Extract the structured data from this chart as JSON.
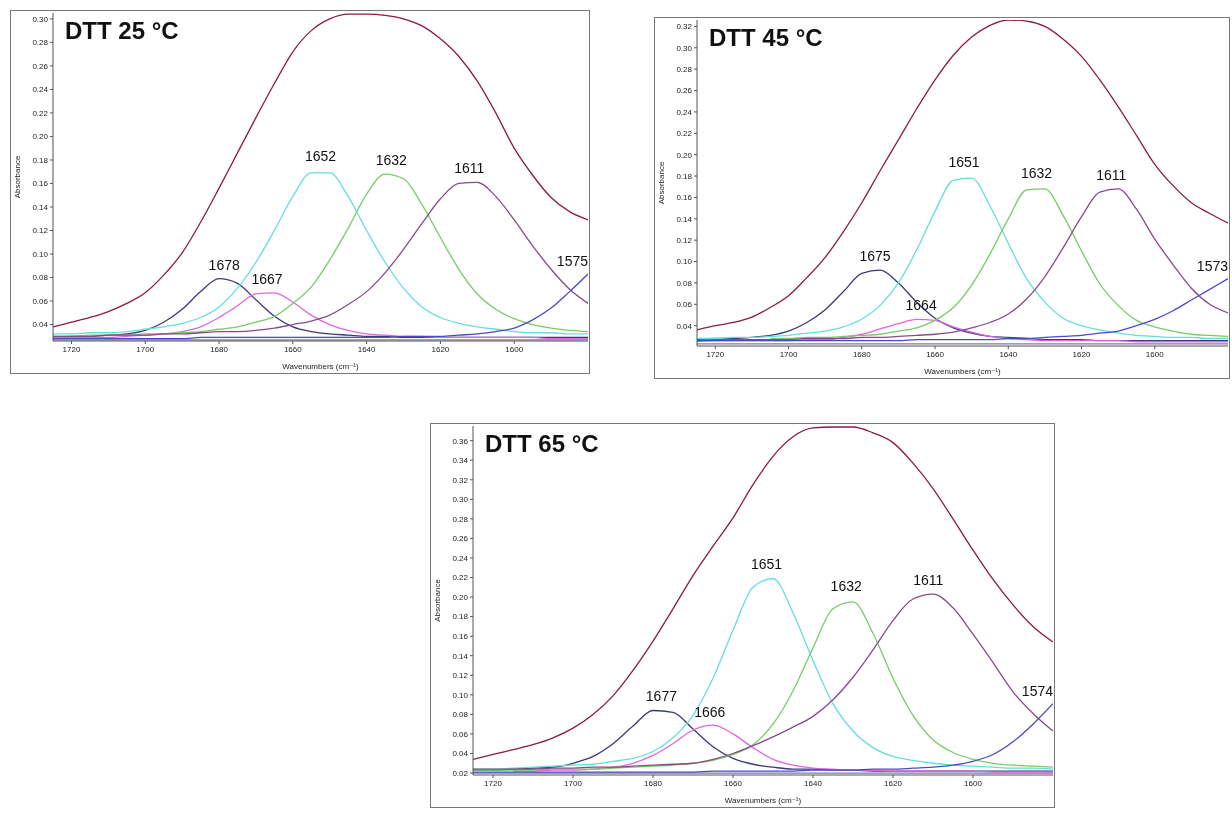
{
  "chart_data": [
    {
      "type": "line",
      "title": "DTT 25 °C",
      "xlabel": "Wavenumbers (cm⁻¹)",
      "ylabel": "Absorbance",
      "xlim": [
        1725,
        1580
      ],
      "xticks": [
        1720,
        1700,
        1680,
        1660,
        1640,
        1620,
        1600
      ],
      "ylim": [
        0.026,
        0.305
      ],
      "yticks": [
        {
          "value": 0.04,
          "label": "0.04"
        },
        {
          "value": 0.06,
          "label": "0.06"
        },
        {
          "value": 0.08,
          "label": "0.08"
        },
        {
          "value": 0.1,
          "label": "0.10"
        },
        {
          "value": 0.12,
          "label": "0.12"
        },
        {
          "value": 0.14,
          "label": "0.14"
        },
        {
          "value": 0.16,
          "label": "0.16"
        },
        {
          "value": 0.18,
          "label": "0.18"
        },
        {
          "value": 0.2,
          "label": "0.20"
        },
        {
          "value": 0.22,
          "label": "0.22"
        },
        {
          "value": 0.24,
          "label": "0.24"
        },
        {
          "value": 0.26,
          "label": "0.26"
        },
        {
          "value": 0.28,
          "label": "0.28"
        },
        {
          "value": 0.3,
          "label": "0.30"
        }
      ],
      "x": [
        1725,
        1720,
        1715,
        1710,
        1705,
        1700,
        1695,
        1690,
        1685,
        1680,
        1675,
        1670,
        1665,
        1660,
        1655,
        1650,
        1645,
        1640,
        1635,
        1630,
        1625,
        1620,
        1615,
        1610,
        1605,
        1600,
        1595,
        1590,
        1585,
        1580
      ],
      "series": [
        {
          "color": "#7a7ab0",
          "values": [
            0.027,
            0.027,
            0.027,
            0.027,
            0.027,
            0.027,
            0.027,
            0.027,
            0.027,
            0.027,
            0.027,
            0.027,
            0.027,
            0.027,
            0.027,
            0.027,
            0.027,
            0.027,
            0.027,
            0.027,
            0.027,
            0.027,
            0.027,
            0.027,
            0.027,
            0.027,
            0.027,
            0.027,
            0.027,
            0.027
          ]
        },
        {
          "color": "#3a3a7a",
          "values": [
            0.029,
            0.03,
            0.03,
            0.031,
            0.032,
            0.035,
            0.042,
            0.053,
            0.068,
            0.079,
            0.075,
            0.061,
            0.047,
            0.038,
            0.034,
            0.032,
            0.031,
            0.03,
            0.03,
            0.029,
            0.029,
            0.029,
            0.029,
            0.029,
            0.029,
            0.029,
            0.029,
            0.029,
            0.029,
            0.029
          ]
        },
        {
          "color": "#e066e0",
          "values": [
            0.029,
            0.029,
            0.029,
            0.029,
            0.03,
            0.031,
            0.032,
            0.034,
            0.038,
            0.046,
            0.056,
            0.066,
            0.067,
            0.059,
            0.048,
            0.04,
            0.035,
            0.032,
            0.031,
            0.03,
            0.03,
            0.029,
            0.029,
            0.029,
            0.029,
            0.029,
            0.029,
            0.028,
            0.028,
            0.028
          ]
        },
        {
          "color": "#66dddd",
          "values": [
            0.032,
            0.032,
            0.033,
            0.033,
            0.034,
            0.036,
            0.038,
            0.041,
            0.046,
            0.055,
            0.071,
            0.093,
            0.12,
            0.149,
            0.169,
            0.169,
            0.149,
            0.12,
            0.093,
            0.071,
            0.055,
            0.046,
            0.041,
            0.038,
            0.036,
            0.034,
            0.033,
            0.033,
            0.032,
            0.032
          ]
        },
        {
          "color": "#77cc66",
          "values": [
            0.03,
            0.03,
            0.031,
            0.031,
            0.031,
            0.032,
            0.032,
            0.033,
            0.034,
            0.036,
            0.038,
            0.042,
            0.047,
            0.058,
            0.072,
            0.095,
            0.122,
            0.151,
            0.168,
            0.164,
            0.142,
            0.114,
            0.087,
            0.066,
            0.053,
            0.045,
            0.04,
            0.037,
            0.035,
            0.034
          ]
        },
        {
          "color": "#8a4a8a",
          "values": [
            0.03,
            0.03,
            0.03,
            0.031,
            0.031,
            0.031,
            0.032,
            0.032,
            0.033,
            0.034,
            0.034,
            0.035,
            0.037,
            0.04,
            0.043,
            0.048,
            0.057,
            0.068,
            0.084,
            0.104,
            0.126,
            0.147,
            0.16,
            0.161,
            0.149,
            0.129,
            0.107,
            0.087,
            0.07,
            0.058
          ]
        },
        {
          "color": "#4a4ac8",
          "values": [
            0.028,
            0.028,
            0.028,
            0.028,
            0.028,
            0.028,
            0.028,
            0.028,
            0.029,
            0.029,
            0.029,
            0.029,
            0.029,
            0.029,
            0.029,
            0.029,
            0.029,
            0.029,
            0.029,
            0.03,
            0.03,
            0.03,
            0.031,
            0.032,
            0.034,
            0.037,
            0.044,
            0.054,
            0.068,
            0.083
          ]
        },
        {
          "color": "#8b1a4a",
          "values": [
            0.038,
            0.042,
            0.046,
            0.051,
            0.058,
            0.067,
            0.082,
            0.101,
            0.127,
            0.156,
            0.186,
            0.216,
            0.245,
            0.272,
            0.29,
            0.3,
            0.304,
            0.304,
            0.303,
            0.3,
            0.294,
            0.283,
            0.268,
            0.247,
            0.22,
            0.19,
            0.167,
            0.148,
            0.136,
            0.129
          ]
        }
      ],
      "annotations": [
        {
          "text": "1678",
          "x": 1678.6,
          "y": 0.08
        },
        {
          "text": "1667",
          "x": 1667,
          "y": 0.068
        },
        {
          "text": "1652",
          "x": 1652.5,
          "y": 0.172
        },
        {
          "text": "1632",
          "x": 1633.3,
          "y": 0.169
        },
        {
          "text": "1611",
          "x": 1612.2,
          "y": 0.162
        },
        {
          "text": "1575",
          "x": 1580,
          "y": 0.083
        }
      ]
    },
    {
      "type": "line",
      "title": "DTT 45 °C",
      "xlabel": "Wavenumbers (cm⁻¹)",
      "ylabel": "Absorbance",
      "xlim": [
        1725,
        1580
      ],
      "xticks": [
        1720,
        1700,
        1680,
        1660,
        1640,
        1620,
        1600
      ],
      "ylim": [
        0.021,
        0.326
      ],
      "yticks": [
        {
          "value": 0.04,
          "label": "0.04"
        },
        {
          "value": 0.06,
          "label": "0.06"
        },
        {
          "value": 0.08,
          "label": "0.08"
        },
        {
          "value": 0.1,
          "label": "0.10"
        },
        {
          "value": 0.12,
          "label": "0.12"
        },
        {
          "value": 0.14,
          "label": "0.14"
        },
        {
          "value": 0.16,
          "label": "0.16"
        },
        {
          "value": 0.18,
          "label": "0.18"
        },
        {
          "value": 0.2,
          "label": "0.20"
        },
        {
          "value": 0.22,
          "label": "0.22"
        },
        {
          "value": 0.24,
          "label": "0.24"
        },
        {
          "value": 0.26,
          "label": "0.26"
        },
        {
          "value": 0.28,
          "label": "0.28"
        },
        {
          "value": 0.3,
          "label": "0.30"
        },
        {
          "value": 0.32,
          "label": "0.32"
        }
      ],
      "x": [
        1725,
        1720,
        1715,
        1710,
        1705,
        1700,
        1695,
        1690,
        1685,
        1680,
        1675,
        1670,
        1665,
        1660,
        1655,
        1650,
        1645,
        1640,
        1635,
        1630,
        1625,
        1620,
        1615,
        1610,
        1605,
        1600,
        1595,
        1590,
        1585,
        1580
      ],
      "series": [
        {
          "color": "#7a7ab0",
          "values": [
            0.023,
            0.023,
            0.023,
            0.023,
            0.023,
            0.023,
            0.023,
            0.023,
            0.023,
            0.023,
            0.023,
            0.023,
            0.023,
            0.023,
            0.023,
            0.023,
            0.023,
            0.023,
            0.023,
            0.023,
            0.023,
            0.023,
            0.023,
            0.023,
            0.023,
            0.023,
            0.023,
            0.023,
            0.023,
            0.023
          ]
        },
        {
          "color": "#3a3a7a",
          "values": [
            0.027,
            0.028,
            0.028,
            0.029,
            0.031,
            0.035,
            0.043,
            0.055,
            0.072,
            0.089,
            0.092,
            0.08,
            0.062,
            0.047,
            0.038,
            0.033,
            0.03,
            0.029,
            0.028,
            0.027,
            0.027,
            0.027,
            0.026,
            0.026,
            0.026,
            0.026,
            0.026,
            0.026,
            0.026,
            0.026
          ]
        },
        {
          "color": "#e066e0",
          "values": [
            0.025,
            0.026,
            0.026,
            0.026,
            0.026,
            0.026,
            0.027,
            0.027,
            0.029,
            0.032,
            0.037,
            0.042,
            0.046,
            0.045,
            0.039,
            0.034,
            0.03,
            0.028,
            0.027,
            0.026,
            0.026,
            0.026,
            0.026,
            0.026,
            0.025,
            0.025,
            0.025,
            0.025,
            0.025,
            0.025
          ]
        },
        {
          "color": "#66dddd",
          "values": [
            0.028,
            0.028,
            0.029,
            0.029,
            0.03,
            0.031,
            0.033,
            0.035,
            0.039,
            0.046,
            0.059,
            0.08,
            0.111,
            0.147,
            0.176,
            0.178,
            0.152,
            0.117,
            0.084,
            0.062,
            0.047,
            0.04,
            0.036,
            0.033,
            0.031,
            0.03,
            0.029,
            0.029,
            0.028,
            0.028
          ]
        },
        {
          "color": "#77cc66",
          "values": [
            null,
            null,
            null,
            null,
            0.028,
            0.028,
            0.029,
            0.029,
            0.03,
            0.031,
            0.032,
            0.035,
            0.038,
            0.045,
            0.057,
            0.078,
            0.107,
            0.14,
            0.167,
            0.168,
            0.143,
            0.11,
            0.079,
            0.059,
            0.045,
            0.039,
            0.035,
            0.032,
            0.031,
            0.03
          ]
        },
        {
          "color": "#8a4a8a",
          "values": [
            0.026,
            0.027,
            0.027,
            0.027,
            0.027,
            0.027,
            0.028,
            0.028,
            0.028,
            0.029,
            0.029,
            0.03,
            0.031,
            0.032,
            0.034,
            0.038,
            0.043,
            0.051,
            0.065,
            0.086,
            0.113,
            0.142,
            0.165,
            0.168,
            0.149,
            0.121,
            0.097,
            0.075,
            0.06,
            0.052
          ]
        },
        {
          "color": "#4a4ac8",
          "values": [
            0.026,
            0.026,
            0.026,
            0.026,
            0.026,
            0.026,
            0.026,
            0.026,
            0.026,
            0.026,
            0.026,
            0.026,
            0.027,
            0.027,
            0.027,
            0.027,
            0.027,
            0.028,
            0.028,
            0.029,
            0.03,
            0.031,
            0.033,
            0.035,
            0.04,
            0.046,
            0.054,
            0.064,
            0.074,
            0.084
          ]
        },
        {
          "color": "#8b1a4a",
          "values": [
            0.036,
            0.04,
            0.043,
            0.048,
            0.057,
            0.068,
            0.085,
            0.104,
            0.128,
            0.155,
            0.185,
            0.214,
            0.243,
            0.27,
            0.293,
            0.31,
            0.321,
            0.326,
            0.325,
            0.32,
            0.308,
            0.292,
            0.27,
            0.245,
            0.218,
            0.191,
            0.171,
            0.155,
            0.145,
            0.136
          ]
        }
      ],
      "annotations": [
        {
          "text": "1675",
          "x": 1676.4,
          "y": 0.093
        },
        {
          "text": "1664",
          "x": 1663.8,
          "y": 0.047
        },
        {
          "text": "1651",
          "x": 1652.1,
          "y": 0.181
        },
        {
          "text": "1632",
          "x": 1632.3,
          "y": 0.171
        },
        {
          "text": "1611",
          "x": 1611.9,
          "y": 0.169
        },
        {
          "text": "1573",
          "x": 1580,
          "y": 0.084
        }
      ]
    },
    {
      "type": "line",
      "title": "DTT 65 °C",
      "xlabel": "Wavenumbers (cm⁻¹)",
      "ylabel": "Absorbance",
      "xlim": [
        1725,
        1580
      ],
      "xticks": [
        1720,
        1700,
        1680,
        1660,
        1640,
        1620,
        1600
      ],
      "ylim": [
        0.018,
        0.375
      ],
      "yticks": [
        {
          "value": 0.02,
          "label": "0.02"
        },
        {
          "value": 0.04,
          "label": "0.04"
        },
        {
          "value": 0.06,
          "label": "0.06"
        },
        {
          "value": 0.08,
          "label": "0.08"
        },
        {
          "value": 0.1,
          "label": "0.10"
        },
        {
          "value": 0.12,
          "label": "0.12"
        },
        {
          "value": 0.14,
          "label": "0.14"
        },
        {
          "value": 0.16,
          "label": "0.16"
        },
        {
          "value": 0.18,
          "label": "0.18"
        },
        {
          "value": 0.2,
          "label": "0.20"
        },
        {
          "value": 0.22,
          "label": "0.22"
        },
        {
          "value": 0.24,
          "label": "0.24"
        },
        {
          "value": 0.26,
          "label": "0.26"
        },
        {
          "value": 0.28,
          "label": "0.28"
        },
        {
          "value": 0.3,
          "label": "0.30"
        },
        {
          "value": 0.32,
          "label": "0.32"
        },
        {
          "value": 0.34,
          "label": "0.34"
        },
        {
          "value": 0.36,
          "label": "0.36"
        }
      ],
      "x": [
        1725,
        1720,
        1715,
        1710,
        1705,
        1700,
        1695,
        1690,
        1685,
        1680,
        1675,
        1670,
        1665,
        1660,
        1655,
        1650,
        1645,
        1640,
        1635,
        1630,
        1625,
        1620,
        1615,
        1610,
        1605,
        1600,
        1595,
        1590,
        1585,
        1580
      ],
      "series": [
        {
          "color": "#7a7ab0",
          "values": [
            0.02,
            0.02,
            0.02,
            0.02,
            0.02,
            0.02,
            0.02,
            0.02,
            0.02,
            0.02,
            0.02,
            0.02,
            0.02,
            0.02,
            0.02,
            0.02,
            0.02,
            0.02,
            0.02,
            0.02,
            0.02,
            0.02,
            0.02,
            0.02,
            0.02,
            0.02,
            0.02,
            0.02,
            0.02,
            0.02
          ]
        },
        {
          "color": "#3a3a7a",
          "values": [
            0.023,
            0.023,
            0.024,
            0.025,
            0.026,
            0.03,
            0.037,
            0.05,
            0.068,
            0.084,
            0.082,
            0.065,
            0.047,
            0.035,
            0.029,
            0.026,
            0.024,
            0.024,
            0.023,
            0.023,
            0.022,
            0.022,
            0.022,
            0.022,
            0.022,
            0.022,
            0.022,
            0.022,
            0.022,
            0.022
          ]
        },
        {
          "color": "#e066e0",
          "values": [
            null,
            null,
            0.022,
            0.022,
            0.023,
            0.023,
            0.024,
            0.026,
            0.03,
            0.038,
            0.05,
            0.064,
            0.069,
            0.06,
            0.046,
            0.034,
            0.028,
            0.025,
            0.024,
            0.023,
            0.023,
            0.022,
            0.022,
            0.022,
            0.022,
            0.022,
            0.021,
            0.021,
            0.021,
            0.021
          ]
        },
        {
          "color": "#66dddd",
          "values": [
            0.024,
            0.024,
            0.025,
            0.026,
            0.027,
            0.028,
            0.029,
            0.032,
            0.035,
            0.042,
            0.056,
            0.079,
            0.117,
            0.166,
            0.21,
            0.219,
            0.184,
            0.135,
            0.091,
            0.063,
            0.046,
            0.037,
            0.033,
            0.03,
            0.028,
            0.027,
            0.026,
            0.025,
            0.025,
            0.024
          ]
        },
        {
          "color": "#77cc66",
          "values": [
            0.023,
            0.023,
            0.023,
            0.023,
            0.024,
            0.024,
            0.024,
            0.025,
            0.026,
            0.027,
            0.028,
            0.03,
            0.033,
            0.039,
            0.049,
            0.07,
            0.104,
            0.148,
            0.188,
            0.195,
            0.163,
            0.117,
            0.079,
            0.054,
            0.041,
            0.034,
            0.03,
            0.028,
            0.027,
            0.026
          ]
        },
        {
          "color": "#8a4a8a",
          "values": [
            0.024,
            0.024,
            0.024,
            0.024,
            0.025,
            0.025,
            0.026,
            0.026,
            0.027,
            0.028,
            0.029,
            0.03,
            0.034,
            0.04,
            0.048,
            0.057,
            0.067,
            0.078,
            0.095,
            0.118,
            0.146,
            0.176,
            0.198,
            0.203,
            0.189,
            0.162,
            0.133,
            0.103,
            0.081,
            0.063
          ]
        },
        {
          "color": "#4a4ac8",
          "values": [
            0.021,
            0.021,
            0.021,
            0.021,
            0.021,
            0.021,
            0.021,
            0.021,
            0.021,
            0.021,
            0.021,
            0.021,
            0.022,
            0.022,
            0.022,
            0.022,
            0.022,
            0.023,
            0.023,
            0.023,
            0.024,
            0.024,
            0.025,
            0.026,
            0.028,
            0.032,
            0.039,
            0.052,
            0.07,
            0.091
          ]
        },
        {
          "color": "#8b1a4a",
          "values": [
            0.034,
            0.039,
            0.044,
            0.049,
            0.056,
            0.066,
            0.08,
            0.099,
            0.125,
            0.155,
            0.188,
            0.222,
            0.252,
            0.281,
            0.315,
            0.344,
            0.364,
            0.373,
            0.374,
            0.374,
            0.368,
            0.358,
            0.337,
            0.311,
            0.28,
            0.248,
            0.218,
            0.192,
            0.17,
            0.154
          ]
        }
      ],
      "annotations": [
        {
          "text": "1677",
          "x": 1677.9,
          "y": 0.086
        },
        {
          "text": "1666",
          "x": 1665.8,
          "y": 0.069
        },
        {
          "text": "1651",
          "x": 1651.6,
          "y": 0.221
        },
        {
          "text": "1632",
          "x": 1631.7,
          "y": 0.198
        },
        {
          "text": "1611",
          "x": 1611.2,
          "y": 0.204
        },
        {
          "text": "1574",
          "x": 1580,
          "y": 0.091
        }
      ]
    }
  ]
}
